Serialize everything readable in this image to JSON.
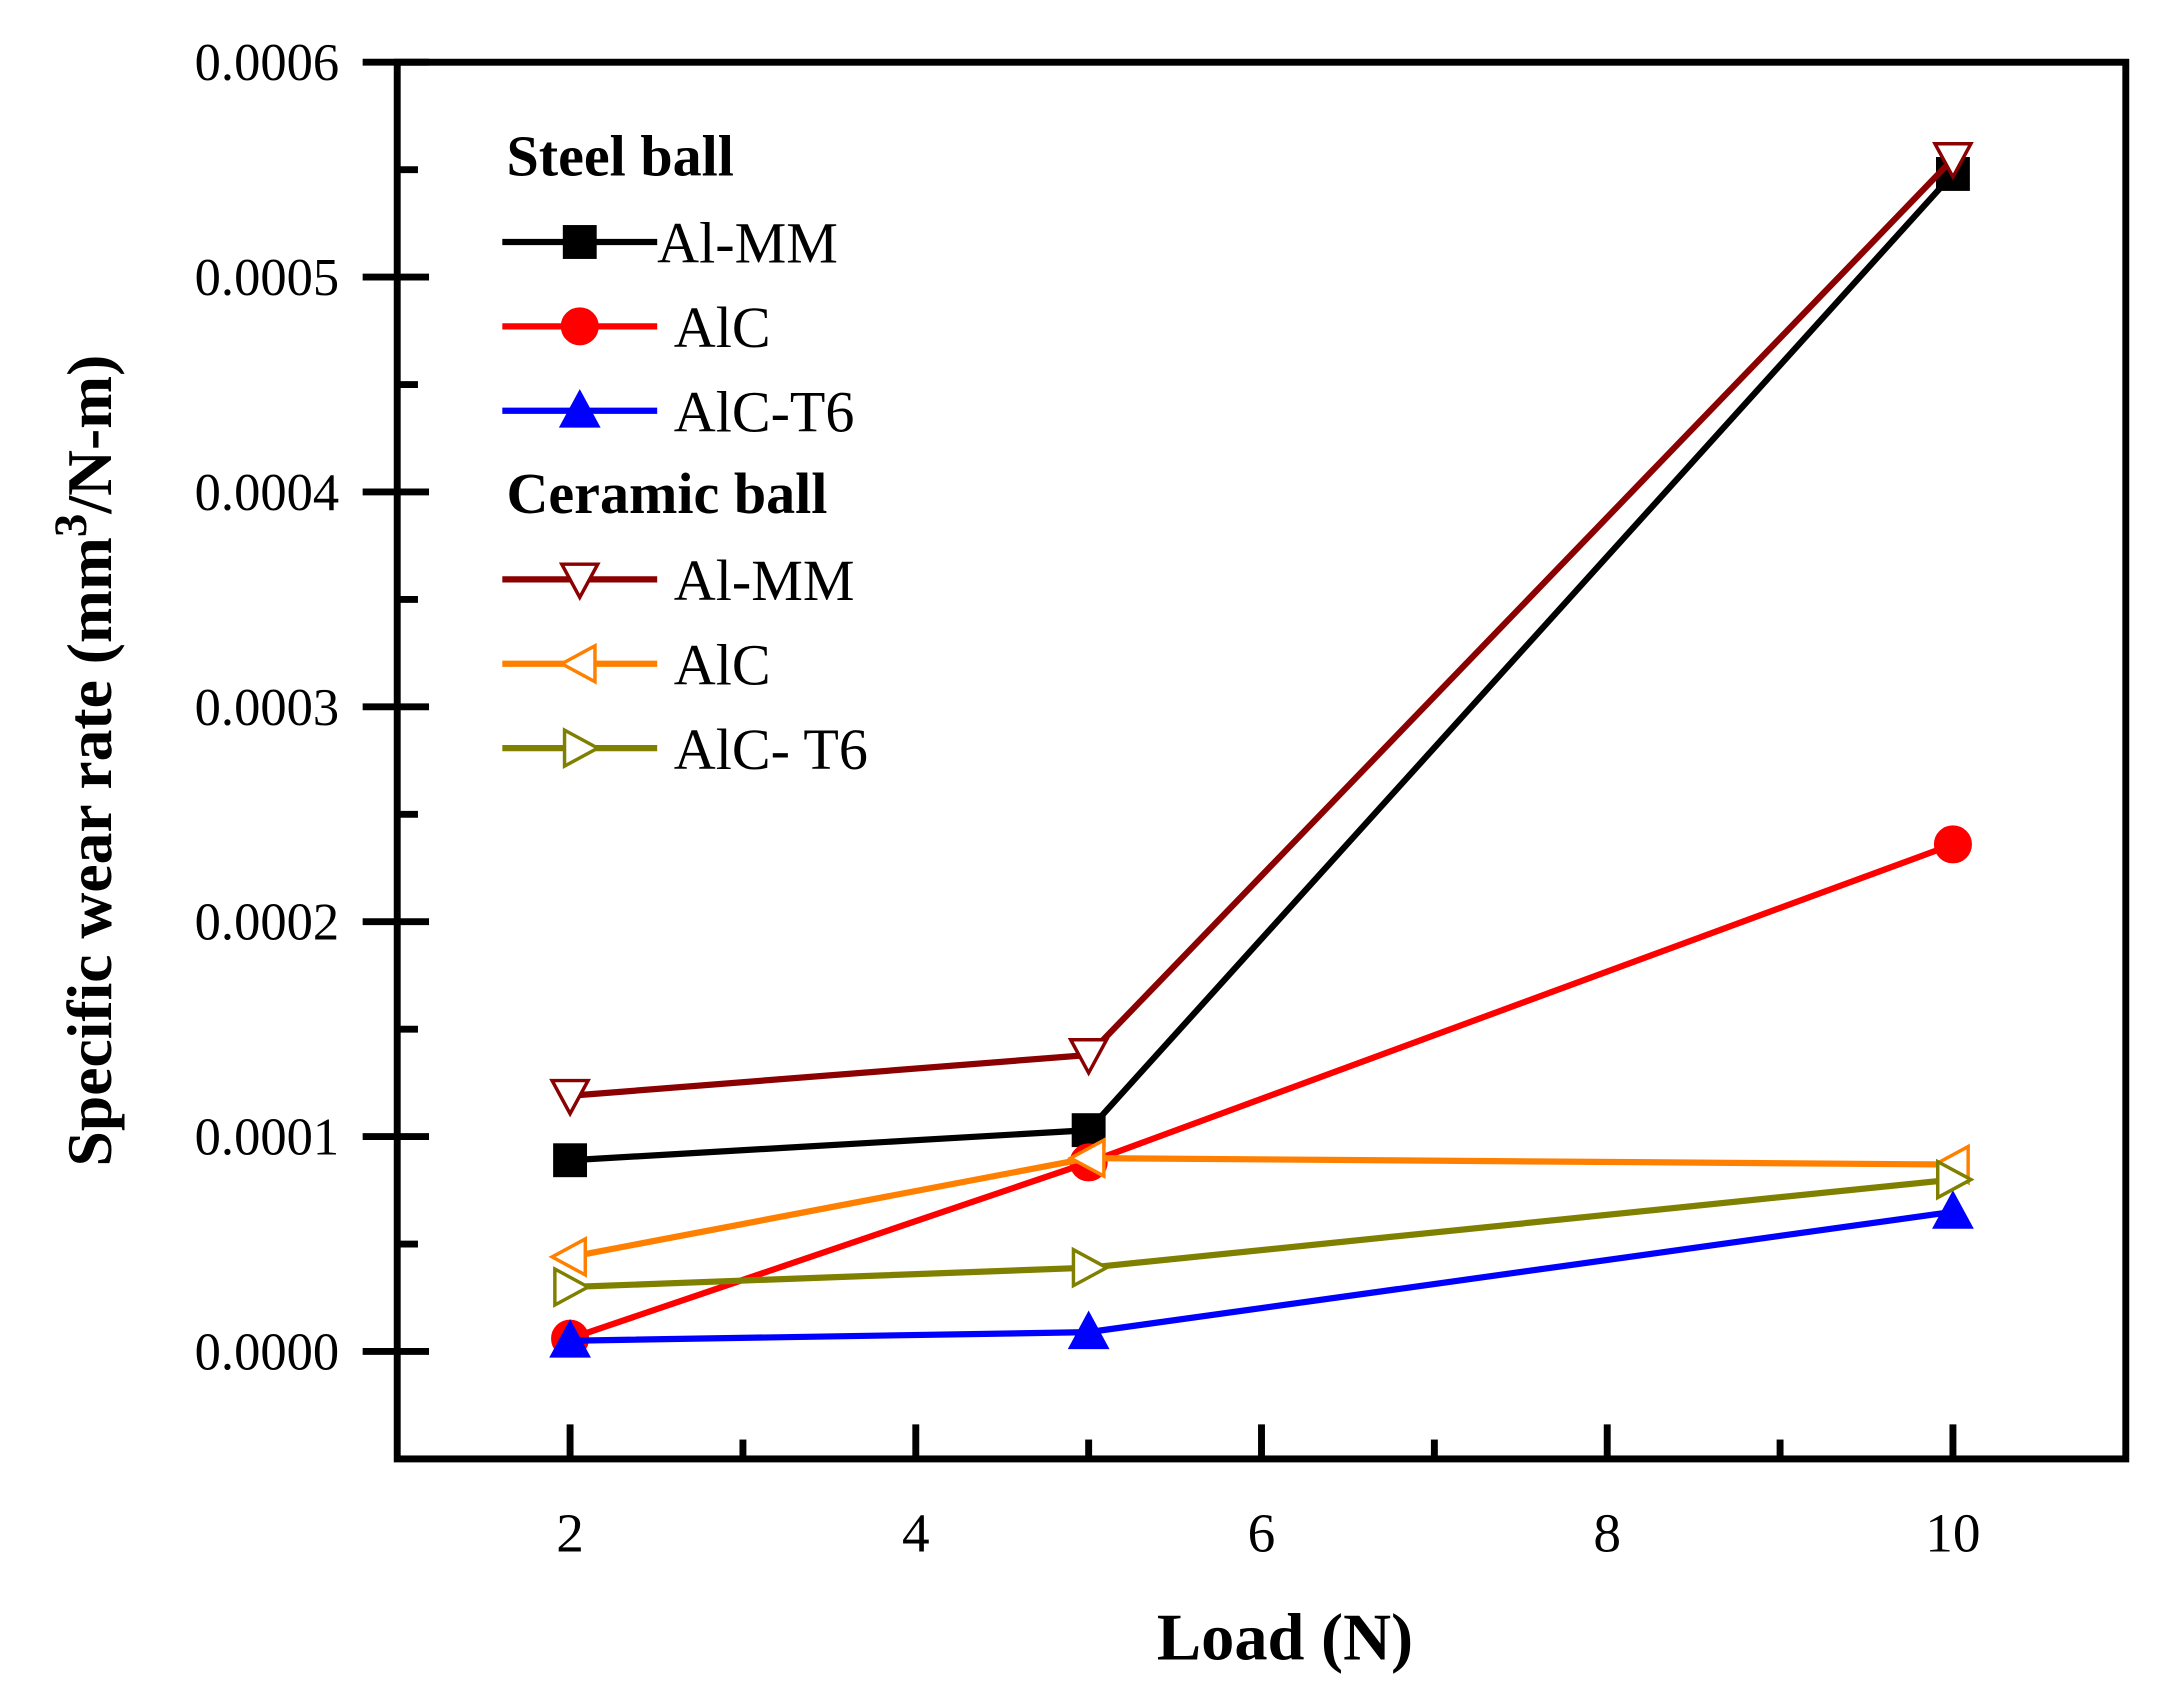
{
  "chart_data": {
    "type": "line",
    "title": "",
    "xlabel": "Load (N)",
    "ylabel_main": "Specific wear rate  (mm",
    "ylabel_sup": "3",
    "ylabel_tail": "/N-m)",
    "xlim": [
      1,
      11
    ],
    "ylim": [
      -5e-05,
      0.0006
    ],
    "x_ticks": [
      2,
      4,
      6,
      8,
      10
    ],
    "x_tick_labels": [
      "2",
      "4",
      "6",
      "8",
      "10"
    ],
    "y_ticks": [
      0,
      0.0001,
      0.0002,
      0.0003,
      0.0004,
      0.0005,
      0.0006
    ],
    "y_tick_labels": [
      "0.0000",
      "0.0001",
      "0.0002",
      "0.0003",
      "0.0004",
      "0.0005",
      "0.0006"
    ],
    "grid": false,
    "legend_placement": "top-left",
    "legend_groups": [
      {
        "title": "Steel ball",
        "series": [
          0,
          1,
          2
        ]
      },
      {
        "title": "Ceramic ball",
        "series": [
          3,
          4,
          5
        ]
      }
    ],
    "x": [
      2,
      5,
      10
    ],
    "series": [
      {
        "name": "Al-MM",
        "group": "Steel ball",
        "color": "#000000",
        "marker": "square",
        "filled": true,
        "values": [
          8.9e-05,
          0.000103,
          0.000548
        ]
      },
      {
        "name": "AlC",
        "group": "Steel ball",
        "color": "#ff0000",
        "marker": "circle",
        "filled": true,
        "values": [
          6e-06,
          8.8e-05,
          0.000236
        ]
      },
      {
        "name": "AlC-T6",
        "group": "Steel ball",
        "color": "#0000ff",
        "marker": "triangle-up",
        "filled": true,
        "values": [
          5e-06,
          9e-06,
          6.5e-05
        ]
      },
      {
        "name": "Al-MM",
        "group": "Ceramic ball",
        "color": "#8b0000",
        "marker": "triangle-down",
        "filled": false,
        "values": [
          0.000119,
          0.000138,
          0.000555
        ]
      },
      {
        "name": "AlC",
        "group": "Ceramic ball",
        "color": "#ff8000",
        "marker": "triangle-left",
        "filled": false,
        "values": [
          4.4e-05,
          9e-05,
          8.7e-05
        ]
      },
      {
        "name": "AlC- T6",
        "group": "Ceramic ball",
        "color": "#808000",
        "marker": "triangle-right",
        "filled": false,
        "values": [
          3e-05,
          3.9e-05,
          8e-05
        ]
      }
    ]
  }
}
